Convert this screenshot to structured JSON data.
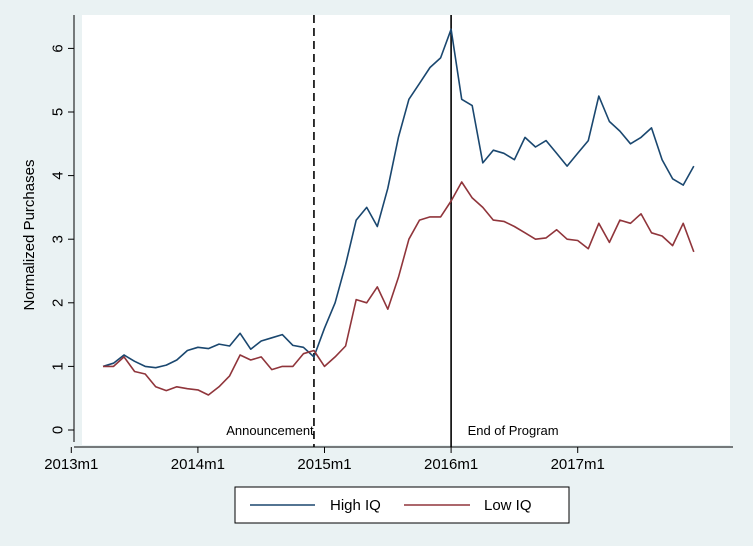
{
  "chart_data": {
    "type": "line",
    "title": "",
    "xlabel": "",
    "ylabel": "Normalized Purchases",
    "ylim": [
      0,
      6.3
    ],
    "yticks": [
      0,
      1,
      2,
      3,
      4,
      5,
      6
    ],
    "xticks": [
      "2013m1",
      "2014m1",
      "2015m1",
      "2016m1",
      "2017m1"
    ],
    "x_start": "2013m4",
    "vlines": [
      {
        "x_index": 20,
        "style": "dashed",
        "label": "Announcement"
      },
      {
        "x_index": 33,
        "style": "solid",
        "label": "End of Program"
      }
    ],
    "legend_position": "bottom",
    "series": [
      {
        "name": "High IQ",
        "color": "#1a476f",
        "values": [
          1.0,
          1.05,
          1.18,
          1.08,
          1.0,
          0.98,
          1.02,
          1.1,
          1.25,
          1.3,
          1.28,
          1.35,
          1.32,
          1.52,
          1.27,
          1.4,
          1.45,
          1.5,
          1.33,
          1.3,
          1.15,
          1.6,
          2.0,
          2.6,
          3.3,
          3.5,
          3.2,
          3.8,
          4.6,
          5.2,
          5.45,
          5.7,
          5.85,
          6.3,
          5.2,
          5.1,
          4.2,
          4.4,
          4.35,
          4.25,
          4.6,
          4.45,
          4.55,
          4.35,
          4.15,
          4.35,
          4.55,
          5.25,
          4.85,
          4.7,
          4.5,
          4.6,
          4.75,
          4.25,
          3.95,
          3.85,
          4.15
        ]
      },
      {
        "name": "Low IQ",
        "color": "#90353b",
        "values": [
          1.0,
          1.0,
          1.15,
          0.92,
          0.88,
          0.68,
          0.62,
          0.68,
          0.65,
          0.63,
          0.55,
          0.68,
          0.85,
          1.18,
          1.1,
          1.15,
          0.95,
          1.0,
          1.0,
          1.2,
          1.25,
          1.0,
          1.15,
          1.32,
          2.05,
          2.0,
          2.25,
          1.9,
          2.4,
          3.0,
          3.3,
          3.35,
          3.35,
          3.6,
          3.9,
          3.65,
          3.5,
          3.3,
          3.28,
          3.2,
          3.1,
          3.0,
          3.02,
          3.15,
          3.0,
          2.98,
          2.85,
          3.25,
          2.95,
          3.3,
          3.25,
          3.4,
          3.1,
          3.05,
          2.9,
          3.25,
          2.8
        ]
      }
    ]
  }
}
